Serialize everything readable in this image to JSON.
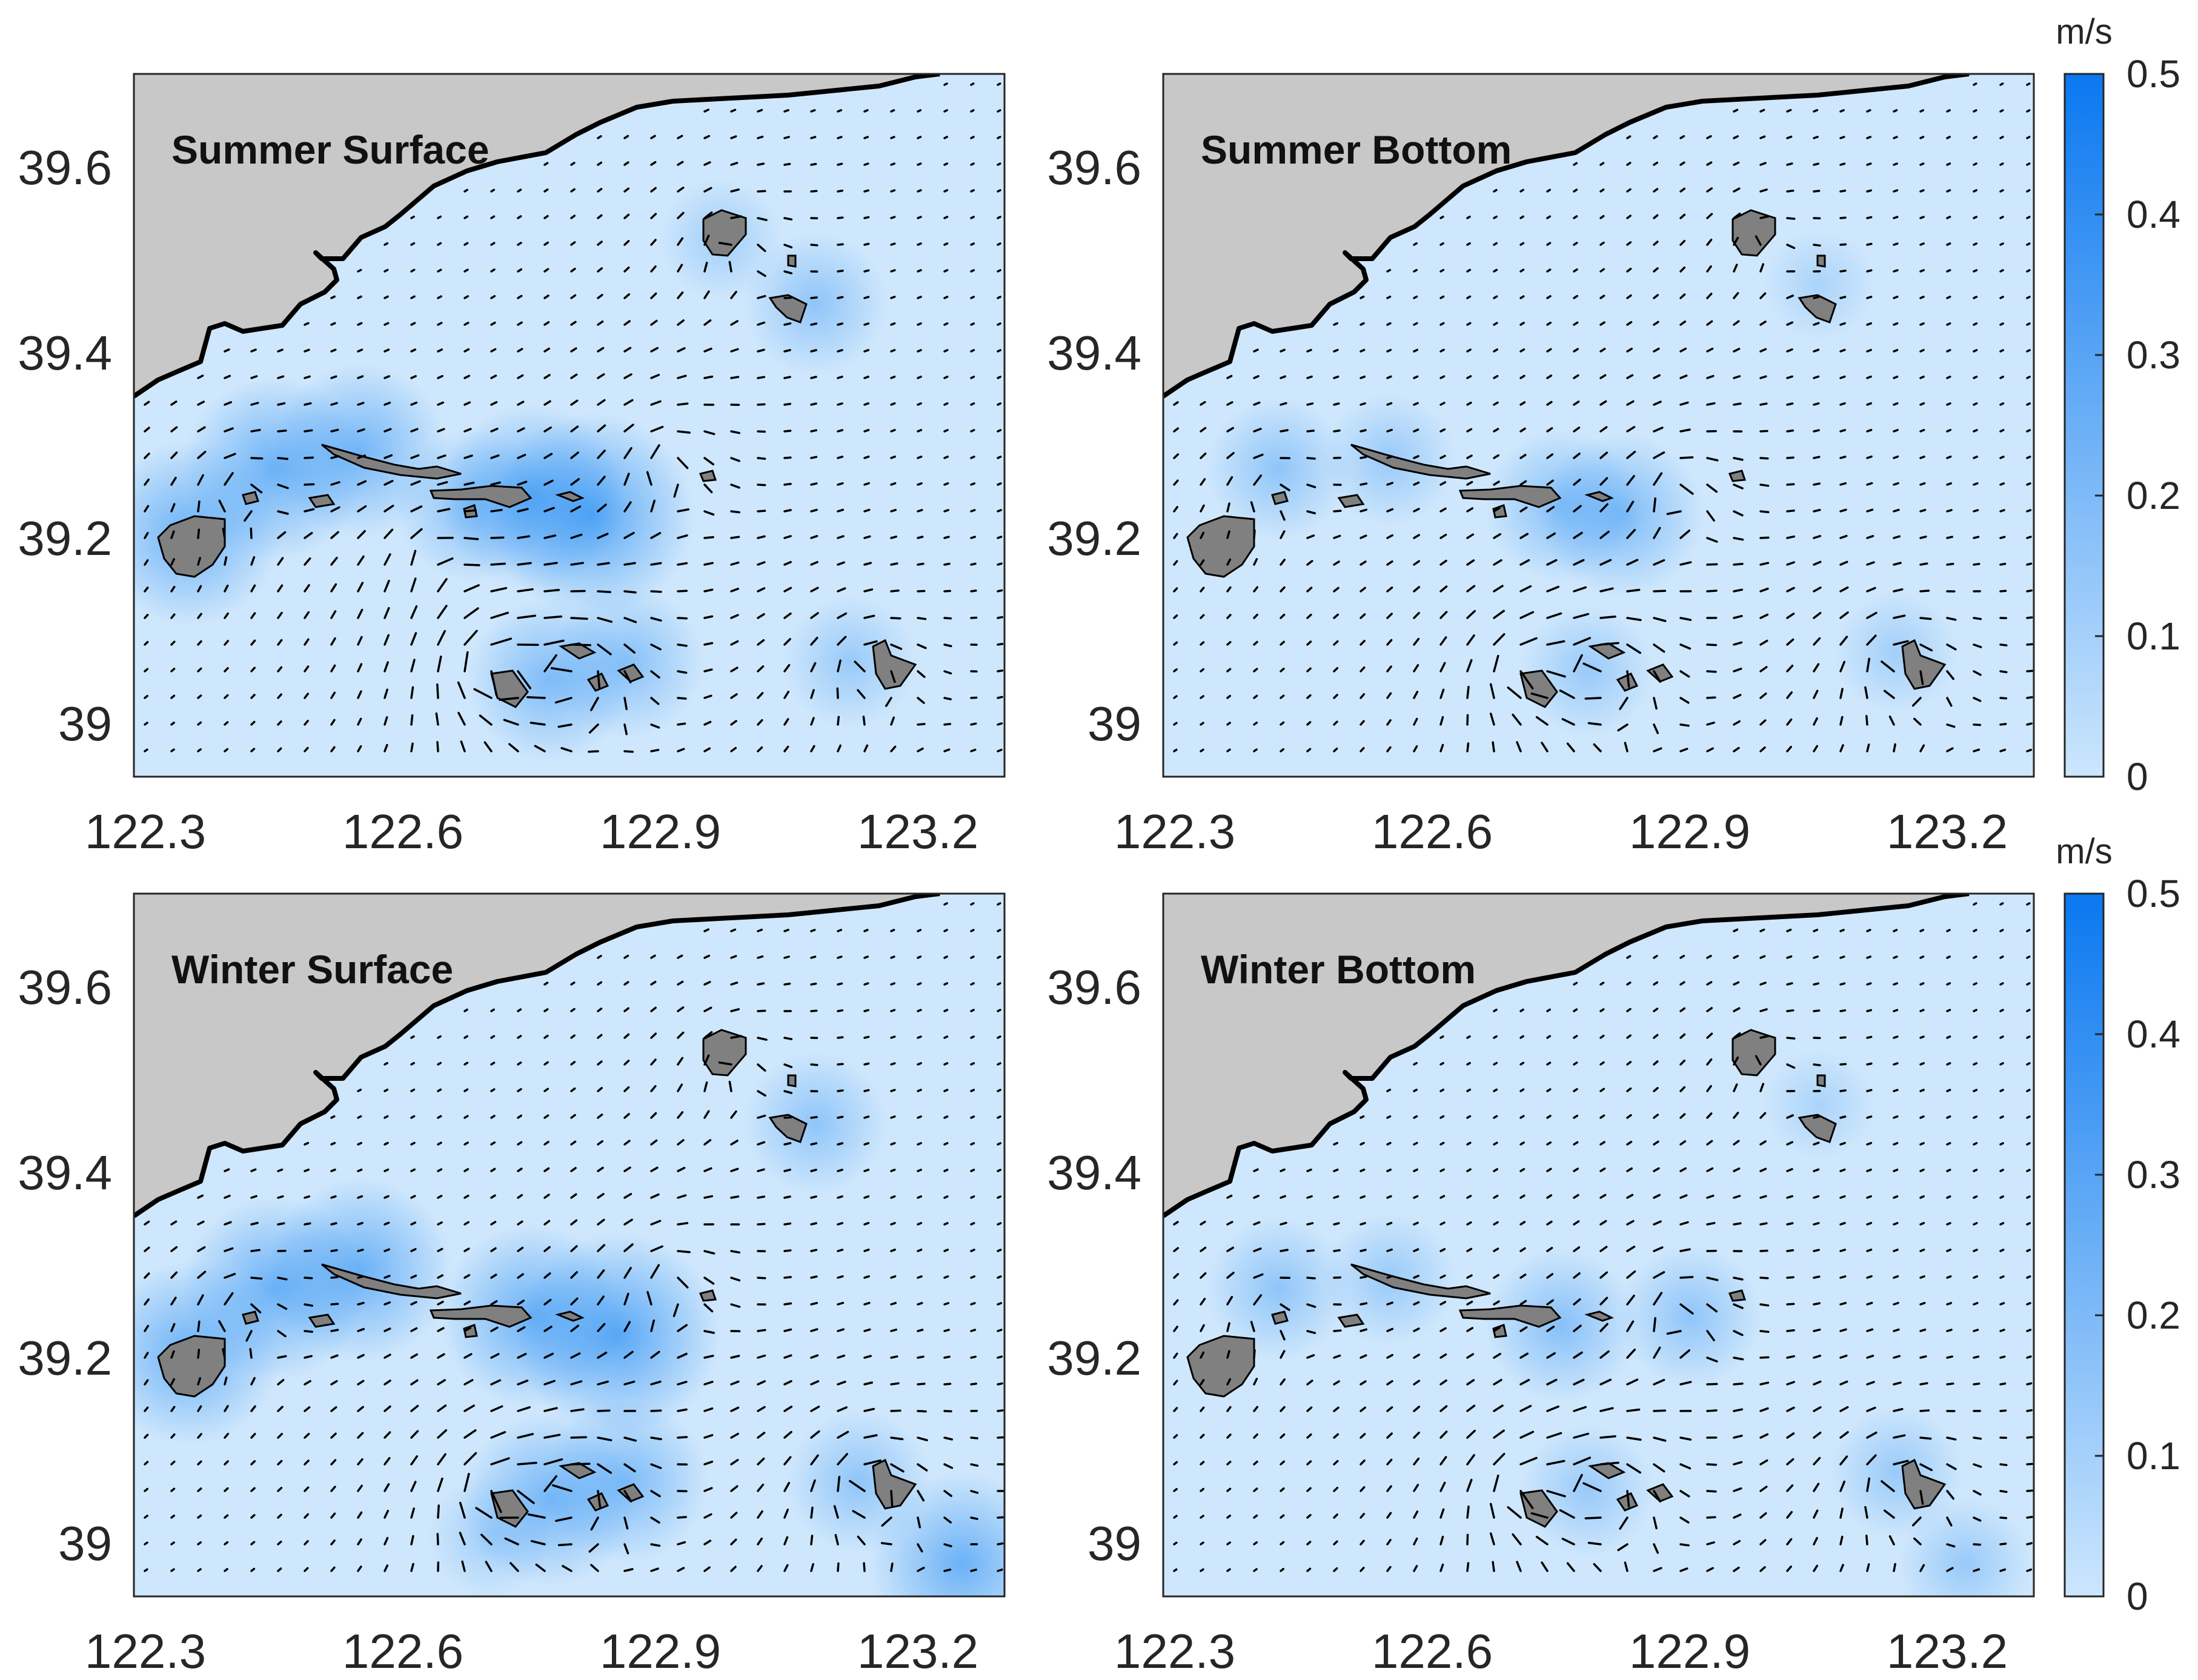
{
  "panels": [
    {
      "title": "Summer Surface",
      "x_ticks": [
        "122.3",
        "122.6",
        "122.9",
        "123.2"
      ],
      "y_ticks": [
        "39.6",
        "39.4",
        "39.2",
        "39"
      ],
      "hotspots": [
        [
          122.35,
          39.2,
          0.22
        ],
        [
          122.45,
          39.27,
          0.22
        ],
        [
          122.55,
          39.29,
          0.2
        ],
        [
          122.75,
          39.24,
          0.22
        ],
        [
          122.82,
          39.22,
          0.26
        ],
        [
          122.77,
          39.04,
          0.18
        ],
        [
          122.86,
          39.06,
          0.16
        ],
        [
          123.08,
          39.45,
          0.14
        ],
        [
          122.97,
          39.52,
          0.1
        ],
        [
          123.12,
          39.06,
          0.12
        ],
        [
          122.68,
          39.23,
          0.16
        ]
      ],
      "eddies": [
        [
          122.7,
          39.05,
          0.7
        ],
        [
          122.8,
          39.06,
          0.5
        ],
        [
          123.14,
          39.06,
          0.5
        ],
        [
          122.98,
          39.52,
          0.4
        ],
        [
          122.9,
          39.28,
          0.5
        ],
        [
          122.4,
          39.25,
          0.5
        ],
        [
          122.63,
          39.18,
          0.4
        ]
      ]
    },
    {
      "title": "Summer Bottom",
      "x_ticks": [
        "122.3",
        "122.6",
        "122.9",
        "123.2"
      ],
      "y_ticks": [
        "39.6",
        "39.4",
        "39.2",
        "39"
      ],
      "hotspots": [
        [
          122.42,
          39.27,
          0.14
        ],
        [
          122.55,
          39.28,
          0.12
        ],
        [
          122.75,
          39.23,
          0.16
        ],
        [
          122.82,
          39.22,
          0.18
        ],
        [
          122.78,
          39.05,
          0.12
        ],
        [
          123.14,
          39.07,
          0.1
        ],
        [
          123.05,
          39.47,
          0.08
        ]
      ],
      "eddies": [
        [
          122.7,
          39.05,
          0.6
        ],
        [
          122.8,
          39.06,
          0.5
        ],
        [
          123.14,
          39.06,
          0.6
        ],
        [
          122.98,
          39.52,
          0.3
        ],
        [
          122.88,
          39.25,
          0.5
        ],
        [
          122.4,
          39.25,
          0.4
        ]
      ]
    },
    {
      "title": "Winter Surface",
      "x_ticks": [
        "122.3",
        "122.6",
        "122.9",
        "123.2"
      ],
      "y_ticks": [
        "39.6",
        "39.4",
        "39.2",
        "39"
      ],
      "hotspots": [
        [
          122.35,
          39.2,
          0.22
        ],
        [
          122.45,
          39.27,
          0.22
        ],
        [
          122.55,
          39.29,
          0.22
        ],
        [
          122.75,
          39.24,
          0.22
        ],
        [
          122.85,
          39.22,
          0.26
        ],
        [
          122.77,
          39.04,
          0.2
        ],
        [
          122.86,
          39.06,
          0.18
        ],
        [
          123.08,
          39.45,
          0.14
        ],
        [
          123.13,
          39.06,
          0.14
        ],
        [
          123.25,
          38.97,
          0.22
        ],
        [
          122.7,
          39.0,
          0.1
        ]
      ],
      "eddies": [
        [
          122.7,
          39.05,
          0.7
        ],
        [
          122.8,
          39.06,
          0.5
        ],
        [
          123.14,
          39.06,
          0.7
        ],
        [
          122.98,
          39.52,
          0.4
        ],
        [
          122.9,
          39.28,
          0.5
        ],
        [
          122.4,
          39.25,
          0.5
        ]
      ]
    },
    {
      "title": "Winter Bottom",
      "x_ticks": [
        "122.3",
        "122.6",
        "122.9",
        "123.2"
      ],
      "y_ticks": [
        "39.6",
        "39.4",
        "39.2",
        "39"
      ],
      "hotspots": [
        [
          122.42,
          39.27,
          0.14
        ],
        [
          122.55,
          39.28,
          0.12
        ],
        [
          122.75,
          39.23,
          0.16
        ],
        [
          122.9,
          39.24,
          0.14
        ],
        [
          122.78,
          39.05,
          0.12
        ],
        [
          123.14,
          39.07,
          0.12
        ],
        [
          123.05,
          39.47,
          0.08
        ],
        [
          123.22,
          38.97,
          0.12
        ]
      ],
      "eddies": [
        [
          122.7,
          39.05,
          0.6
        ],
        [
          122.8,
          39.06,
          0.5
        ],
        [
          123.14,
          39.06,
          0.6
        ],
        [
          122.98,
          39.52,
          0.3
        ],
        [
          122.88,
          39.25,
          0.5
        ],
        [
          122.4,
          39.25,
          0.4
        ]
      ]
    }
  ],
  "colorbar": {
    "unit": "m/s",
    "ticks": [
      "0.5",
      "0.4",
      "0.3",
      "0.2",
      "0.1",
      "0"
    ],
    "color_low": "#cce6fd",
    "color_high": "#0a78f0"
  },
  "colors": {
    "land": "#c8c8c8",
    "island": "#808080",
    "water": "#cfe7fc",
    "coastline": "#000000",
    "arrow": "#000000"
  }
}
